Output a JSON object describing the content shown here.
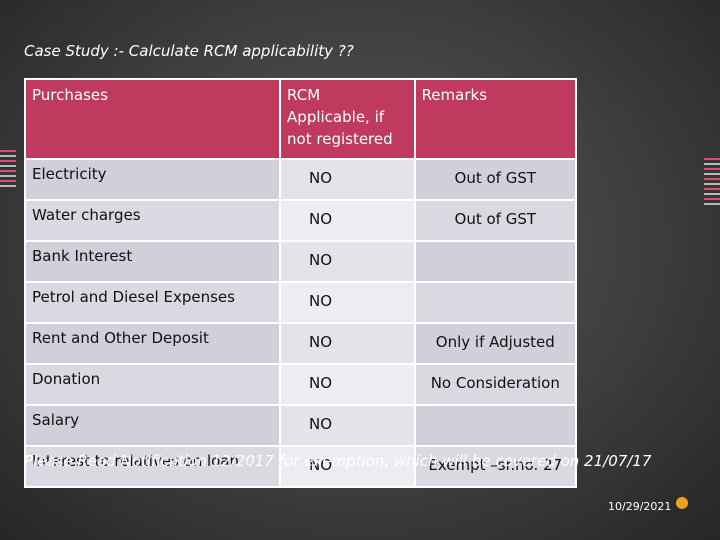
{
  "title": "Case Study :- Calculate RCM applicability ??",
  "table": {
    "headers": [
      "Purchases",
      "RCM Applicable, if not registered",
      "Remarks"
    ],
    "rows": [
      {
        "item": "Electricity",
        "rcm": "NO",
        "remark": "Out of GST"
      },
      {
        "item": "Water charges",
        "rcm": "NO",
        "remark": "Out of GST"
      },
      {
        "item": "Bank Interest",
        "rcm": "NO",
        "remark": ""
      },
      {
        "item": "Petrol and Diesel Expenses",
        "rcm": "NO",
        "remark": ""
      },
      {
        "item": "Rent and Other Deposit",
        "rcm": "NO",
        "remark": "Only if Adjusted"
      },
      {
        "item": "Donation",
        "rcm": "NO",
        "remark": "No Consideration"
      },
      {
        "item": "Salary",
        "rcm": "NO",
        "remark": ""
      },
      {
        "item": "Interest to relatives on loan",
        "rcm": "NO",
        "remark": "Exempt –sr.no. 27"
      }
    ]
  },
  "note": "Please Read Notification 12/2017 for exemption, which will be covered on 21/07/17",
  "date": "10/29/2021",
  "colors": {
    "header": "#c0395f",
    "cell": "#d9d9e2",
    "background": "#3e3e3e"
  }
}
